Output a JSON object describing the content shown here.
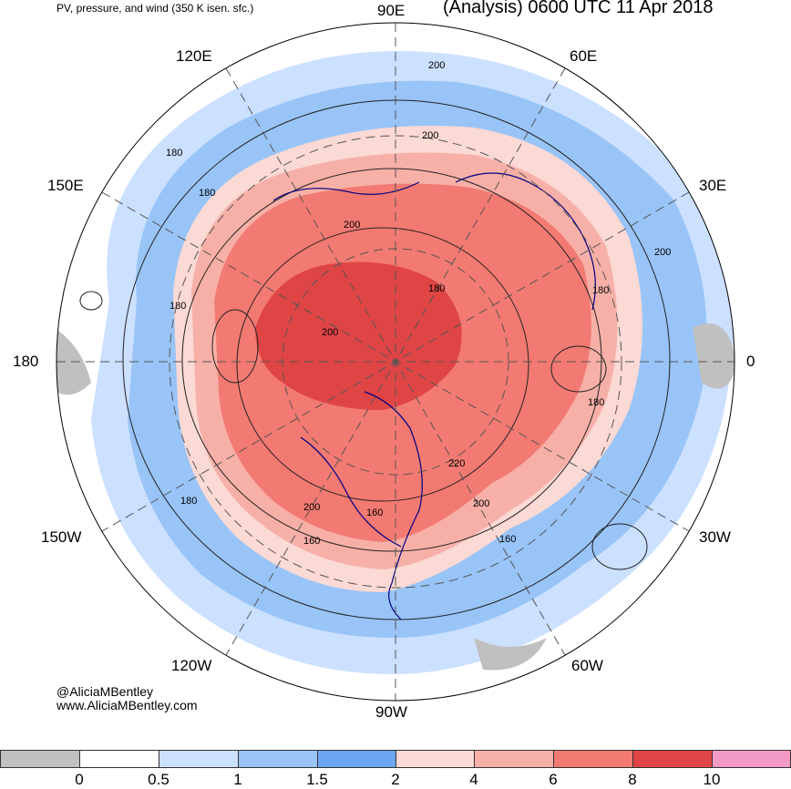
{
  "header": {
    "subtitle": "PV, pressure, and wind (350 K isen. sfc.)",
    "title": "(Analysis) 0600 UTC 11 Apr 2018"
  },
  "longitude_labels": {
    "e90": "90E",
    "e120": "120E",
    "e60": "60E",
    "e150": "150E",
    "e30": "30E",
    "d180": "180",
    "d0": "0",
    "w150": "150W",
    "w30": "30W",
    "w120": "120W",
    "w60": "60W",
    "w90": "90W"
  },
  "contour_labels": [
    "200",
    "200",
    "180",
    "180",
    "200",
    "180",
    "200",
    "180",
    "200",
    "180",
    "200",
    "180",
    "220",
    "160",
    "200",
    "160",
    "180",
    "160"
  ],
  "credits": {
    "handle": "@AliciaMBentley",
    "website": "www.AliciaMBentley.com"
  },
  "colorbar": {
    "colors": [
      "#c0c0c0",
      "#ffffff",
      "#cce0ff",
      "#99c4f7",
      "#6aa6f2",
      "#fbd9d4",
      "#f7b0a8",
      "#f27a72",
      "#e04545",
      "#f49ac7"
    ],
    "labels": [
      "0",
      "0.5",
      "1",
      "1.5",
      "2",
      "4",
      "6",
      "8",
      "10"
    ]
  }
}
